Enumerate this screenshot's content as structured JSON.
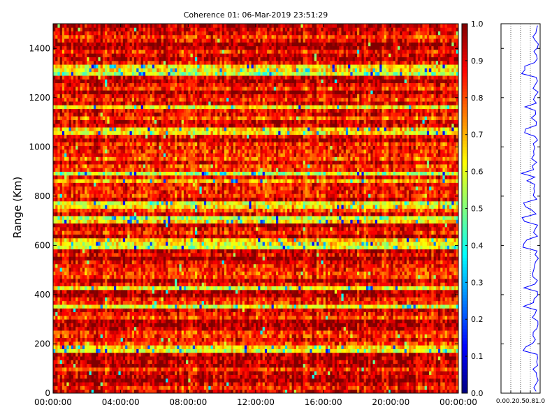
{
  "title": "Coherence 01: 06-Mar-2019 23:51:29",
  "chart_data": [
    {
      "type": "heatmap",
      "ylabel": "Range (Km)",
      "xlabel": "",
      "ylim": [
        0,
        1500
      ],
      "yticks": [
        "0",
        "200",
        "400",
        "600",
        "800",
        "1000",
        "1200",
        "1400"
      ],
      "ytick_values": [
        0,
        200,
        400,
        600,
        800,
        1000,
        1200,
        1400
      ],
      "xticks": [
        "00:00:00",
        "04:00:00",
        "08:00:00",
        "12:00:00",
        "16:00:00",
        "20:00:00",
        "00:00:00"
      ],
      "colormap": "jet",
      "value_range": [
        0.0,
        1.0
      ],
      "colorbar_ticks": [
        "0.0",
        "0.1",
        "0.2",
        "0.3",
        "0.4",
        "0.5",
        "0.6",
        "0.7",
        "0.8",
        "0.9",
        "1.0"
      ],
      "low_coherence_bands_km": [
        [
          165,
          195
        ],
        [
          340,
          360
        ],
        [
          415,
          430
        ],
        [
          585,
          630
        ],
        [
          695,
          715
        ],
        [
          755,
          780
        ],
        [
          848,
          870
        ],
        [
          880,
          905
        ],
        [
          1055,
          1075
        ],
        [
          1155,
          1175
        ],
        [
          1290,
          1340
        ]
      ],
      "time_steps": 180,
      "range_gates": 100
    },
    {
      "type": "line",
      "xlim": [
        0.0,
        1.0
      ],
      "xticks": [
        "0.0",
        "0.2",
        "0.5",
        "0.8",
        "1.0"
      ],
      "xtick_values": [
        0.0,
        0.25,
        0.5,
        0.75,
        1.0
      ],
      "ylim": [
        0,
        1500
      ],
      "color": "#0000ff",
      "grid": true,
      "description_profile_km": [
        0,
        1500
      ]
    }
  ]
}
